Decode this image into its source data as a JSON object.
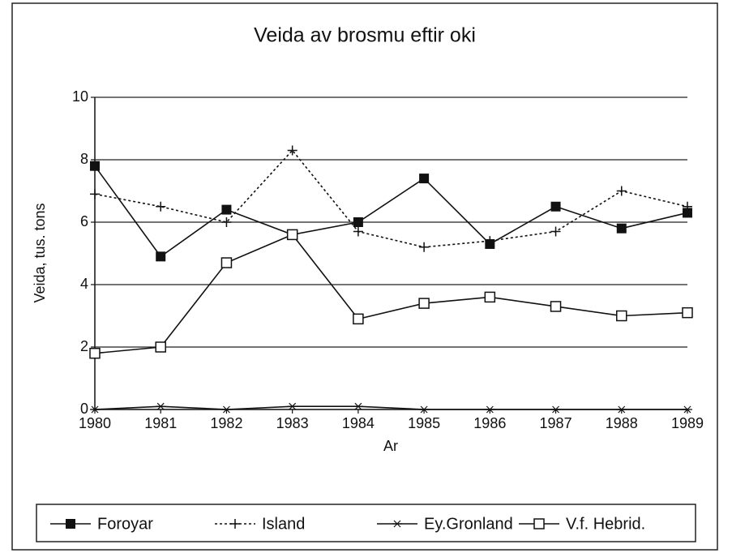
{
  "chart_data": {
    "type": "line",
    "title": "Veida av brosmu eftir oki",
    "y_label": "Veida, tus. tons",
    "x_label": "Ar",
    "categories": [
      "1980",
      "1981",
      "1982",
      "1983",
      "1984",
      "1985",
      "1986",
      "1987",
      "1988",
      "1989"
    ],
    "series": [
      {
        "name": "Foroyar",
        "color": "#111111",
        "dash": "solid",
        "marker": "filled-square",
        "values": [
          7.8,
          4.9,
          6.4,
          5.6,
          6.0,
          7.4,
          5.3,
          6.5,
          5.8,
          6.3
        ]
      },
      {
        "name": "Island",
        "color": "#111111",
        "dash": "dotted",
        "marker": "plus",
        "values": [
          6.9,
          6.5,
          6.0,
          8.3,
          5.7,
          5.2,
          5.4,
          5.7,
          7.0,
          6.5
        ]
      },
      {
        "name": "Ey.Gronland",
        "color": "#111111",
        "dash": "solid",
        "marker": "star",
        "values": [
          0,
          0.1,
          0,
          0.1,
          0.1,
          0,
          0,
          0,
          0,
          0
        ]
      },
      {
        "name": "V.f. Hebrid.",
        "color": "#111111",
        "dash": "solid",
        "marker": "open-square",
        "values": [
          1.8,
          2.0,
          4.7,
          5.6,
          2.9,
          3.4,
          3.6,
          3.3,
          3.0,
          3.1
        ]
      }
    ],
    "ylim": [
      0,
      10
    ],
    "yticks": [
      0,
      2,
      4,
      6,
      8,
      10
    ],
    "grid": true,
    "legend": "bottom"
  }
}
